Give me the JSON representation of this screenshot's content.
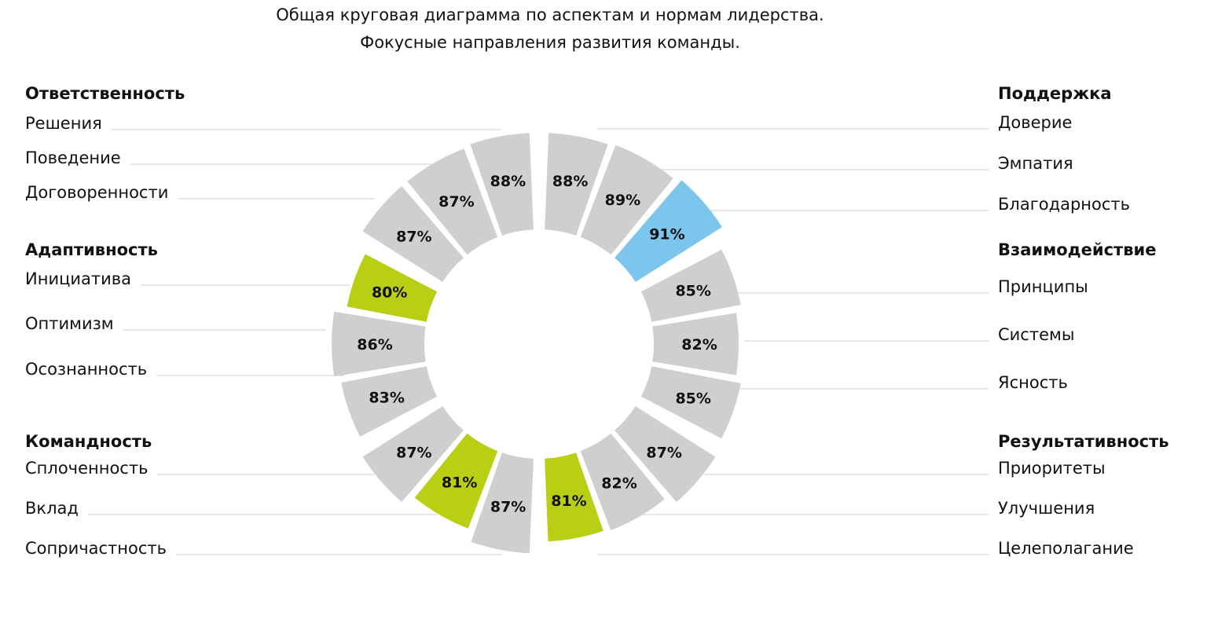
{
  "title": {
    "line1": "Общая круговая диаграмма по аспектам и нормам лидерства.",
    "line2": "Фокусные направления развития команды."
  },
  "colors": {
    "neutral": "#cfcfcf",
    "low": "#b8cf14",
    "high": "#7cc6ee",
    "background": "#ffffff",
    "text": "#111111",
    "leader": "#cfcfcf"
  },
  "chart_data": {
    "type": "donut",
    "unit": "%",
    "groups": [
      {
        "name": "Поддержка",
        "items": [
          {
            "label": "Доверие",
            "value": 88,
            "status": "neutral"
          },
          {
            "label": "Эмпатия",
            "value": 89,
            "status": "neutral"
          },
          {
            "label": "Благодарность",
            "value": 91,
            "status": "high"
          }
        ]
      },
      {
        "name": "Взаимодействие",
        "items": [
          {
            "label": "Принципы",
            "value": 85,
            "status": "neutral"
          },
          {
            "label": "Системы",
            "value": 82,
            "status": "neutral"
          },
          {
            "label": "Ясность",
            "value": 85,
            "status": "neutral"
          }
        ]
      },
      {
        "name": "Результативность",
        "items": [
          {
            "label": "Приоритеты",
            "value": 87,
            "status": "neutral"
          },
          {
            "label": "Улучшения",
            "value": 82,
            "status": "neutral"
          },
          {
            "label": "Целеполагание",
            "value": 81,
            "status": "low"
          }
        ]
      },
      {
        "name": "Командность",
        "items": [
          {
            "label": "Сопричастность",
            "value": 87,
            "status": "neutral"
          },
          {
            "label": "Вклад",
            "value": 81,
            "status": "low"
          },
          {
            "label": "Сплоченность",
            "value": 87,
            "status": "neutral"
          }
        ]
      },
      {
        "name": "Адаптивность",
        "items": [
          {
            "label": "Осознанность",
            "value": 83,
            "status": "neutral"
          },
          {
            "label": "Оптимизм",
            "value": 86,
            "status": "neutral"
          },
          {
            "label": "Инициатива",
            "value": 80,
            "status": "low"
          }
        ]
      },
      {
        "name": "Ответственность",
        "items": [
          {
            "label": "Договоренности",
            "value": 87,
            "status": "neutral"
          },
          {
            "label": "Поведение",
            "value": 87,
            "status": "neutral"
          },
          {
            "label": "Решения",
            "value": 88,
            "status": "neutral"
          }
        ]
      }
    ]
  }
}
